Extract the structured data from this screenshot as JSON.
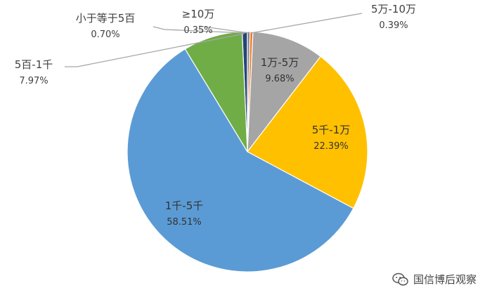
{
  "chart_data": {
    "type": "pie",
    "title": "",
    "slices": [
      {
        "label": "小于等于5百",
        "pct_text": "0.70%",
        "value": 0.7,
        "color": "#264478"
      },
      {
        "label": "≥10万",
        "pct_text": "0.35%",
        "value": 0.35,
        "color": "#7f7f7f"
      },
      {
        "label": "5万-10万",
        "pct_text": "0.39%",
        "value": 0.39,
        "color": "#ed7d31"
      },
      {
        "label": "1万-5万",
        "pct_text": "9.68%",
        "value": 9.68,
        "color": "#a5a5a5"
      },
      {
        "label": "5千-1万",
        "pct_text": "22.39%",
        "value": 22.39,
        "color": "#ffc000"
      },
      {
        "label": "1千-5千",
        "pct_text": "58.51%",
        "value": 58.51,
        "color": "#5b9bd5"
      },
      {
        "label": "5百-1千",
        "pct_text": "7.97%",
        "value": 7.97,
        "color": "#70ad47"
      }
    ]
  },
  "watermark": {
    "text": "国信博后观察",
    "icon": "wechat-icon"
  }
}
